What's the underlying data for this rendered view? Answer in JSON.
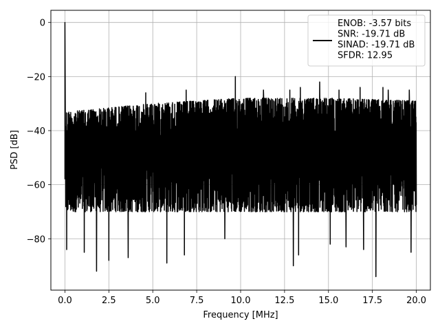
{
  "chart_data": {
    "type": "line",
    "xlabel": "Frequency [MHz]",
    "ylabel": "PSD [dB]",
    "xlim": [
      -0.8,
      20.8
    ],
    "ylim": [
      -99,
      4.5
    ],
    "xticks": [
      0.0,
      2.5,
      5.0,
      7.5,
      10.0,
      12.5,
      15.0,
      17.5,
      20.0
    ],
    "xtick_labels": [
      "0.0",
      "2.5",
      "5.0",
      "7.5",
      "10.0",
      "12.5",
      "15.0",
      "17.5",
      "20.0"
    ],
    "yticks": [
      0,
      -20,
      -40,
      -60,
      -80
    ],
    "ytick_labels": [
      "0",
      "−20",
      "−40",
      "−60",
      "−80"
    ],
    "grid": true,
    "legend_position": "top-right",
    "series": [
      {
        "name": "ENOB: -3.57 bits\nSNR: -19.71 dB\nSINAD: -19.71 dB\nSFDR: 12.95",
        "color": "#000000",
        "x_range": [
          0,
          20
        ],
        "fundamental": {
          "x": 0.0,
          "y": 0
        },
        "floor_upper": {
          "x": [
            0.2,
            5.0,
            10.0,
            15.0,
            20.0
          ],
          "y": [
            -33,
            -30,
            -28,
            -28,
            -29
          ]
        },
        "floor_lower": -70,
        "peaks": [
          {
            "x": 4.6,
            "y": -26
          },
          {
            "x": 6.9,
            "y": -25
          },
          {
            "x": 9.7,
            "y": -20
          },
          {
            "x": 11.3,
            "y": -25
          },
          {
            "x": 12.8,
            "y": -25
          },
          {
            "x": 13.4,
            "y": -24
          },
          {
            "x": 14.5,
            "y": -22
          },
          {
            "x": 15.6,
            "y": -25
          },
          {
            "x": 16.8,
            "y": -24
          },
          {
            "x": 18.1,
            "y": -24
          },
          {
            "x": 18.4,
            "y": -25
          },
          {
            "x": 19.6,
            "y": -25
          }
        ],
        "dips": [
          {
            "x": 0.1,
            "y": -84
          },
          {
            "x": 1.1,
            "y": -85
          },
          {
            "x": 1.8,
            "y": -92
          },
          {
            "x": 2.5,
            "y": -88
          },
          {
            "x": 3.6,
            "y": -87
          },
          {
            "x": 5.8,
            "y": -89
          },
          {
            "x": 6.8,
            "y": -86
          },
          {
            "x": 9.1,
            "y": -80
          },
          {
            "x": 13.0,
            "y": -90
          },
          {
            "x": 13.3,
            "y": -86
          },
          {
            "x": 15.1,
            "y": -82
          },
          {
            "x": 16.0,
            "y": -83
          },
          {
            "x": 17.0,
            "y": -84
          },
          {
            "x": 17.7,
            "y": -94
          },
          {
            "x": 19.7,
            "y": -85
          }
        ]
      }
    ]
  }
}
